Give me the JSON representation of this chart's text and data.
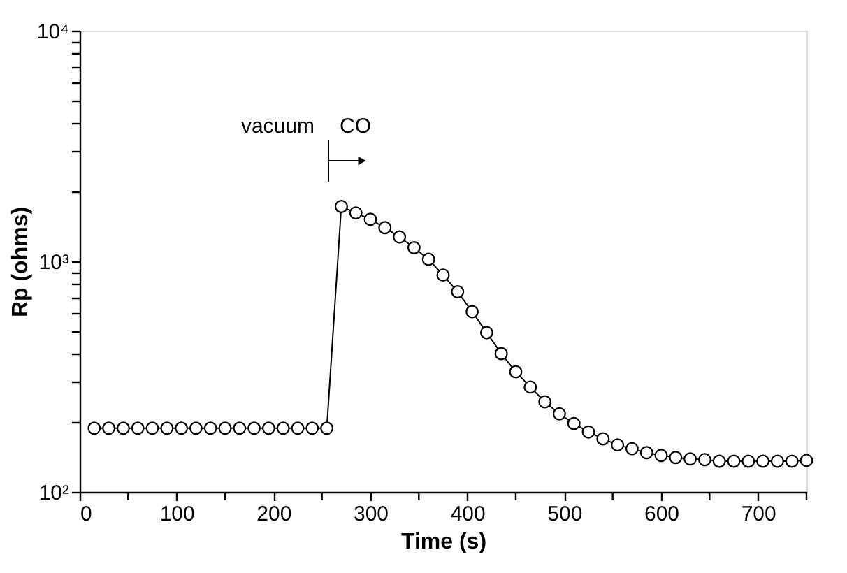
{
  "chart_data": {
    "type": "line",
    "xlabel": "Time (s)",
    "ylabel": "Rp (ohms)",
    "x": [
      15,
      30,
      45,
      60,
      75,
      90,
      105,
      120,
      135,
      150,
      165,
      180,
      195,
      210,
      225,
      240,
      255,
      270,
      285,
      300,
      315,
      330,
      345,
      360,
      375,
      390,
      405,
      420,
      435,
      450,
      465,
      480,
      495,
      510,
      525,
      540,
      555,
      570,
      585,
      600,
      615,
      630,
      645,
      660,
      675,
      690,
      705,
      720,
      735,
      750
    ],
    "series": [
      {
        "color": "#000000",
        "values": [
          189,
          189,
          189,
          189,
          189,
          189,
          189,
          189,
          189,
          189,
          189,
          189,
          189,
          189,
          189,
          189,
          189,
          1730,
          1623,
          1522,
          1400,
          1276,
          1146,
          1021,
          872,
          738,
          605,
          491,
          398,
          332,
          285,
          246,
          218,
          198,
          182,
          170,
          160,
          154,
          148,
          144,
          141,
          139,
          138,
          136,
          136,
          136,
          136,
          136,
          136,
          137
        ]
      }
    ],
    "log": "y",
    "marker": "circle",
    "line_style": "solid",
    "grid": false,
    "xlim": [
      0,
      750
    ],
    "xticks": [
      0,
      {
        "value": 50,
        "label": null
      },
      100,
      {
        "value": 150,
        "label": null
      },
      200,
      {
        "value": 250,
        "label": null
      },
      300,
      {
        "value": 350,
        "label": null
      },
      400,
      {
        "value": 450,
        "label": null
      },
      500,
      {
        "value": 550,
        "label": null
      },
      600,
      {
        "value": 650,
        "label": null
      },
      700,
      {
        "value": 750,
        "label": null
      }
    ],
    "ylim": [
      100,
      10000
    ],
    "yticks": [
      {
        "value": 100,
        "label": "10²"
      },
      {
        "value": 200,
        "label": null
      },
      {
        "value": 300,
        "label": null
      },
      {
        "value": 400,
        "label": null
      },
      {
        "value": 500,
        "label": null
      },
      {
        "value": 600,
        "label": null
      },
      {
        "value": 700,
        "label": null
      },
      {
        "value": 800,
        "label": null
      },
      {
        "value": 900,
        "label": null
      },
      {
        "value": 1000,
        "label": "10³"
      },
      {
        "value": 2000,
        "label": null
      },
      {
        "value": 3000,
        "label": null
      },
      {
        "value": 4000,
        "label": null
      },
      {
        "value": 5000,
        "label": null
      },
      {
        "value": 6000,
        "label": null
      },
      {
        "value": 7000,
        "label": null
      },
      {
        "value": 8000,
        "label": null
      },
      {
        "value": 9000,
        "label": null
      },
      {
        "value": 10000,
        "label": "10⁴"
      }
    ],
    "annotations": [
      "vacuum",
      "CO"
    ]
  }
}
